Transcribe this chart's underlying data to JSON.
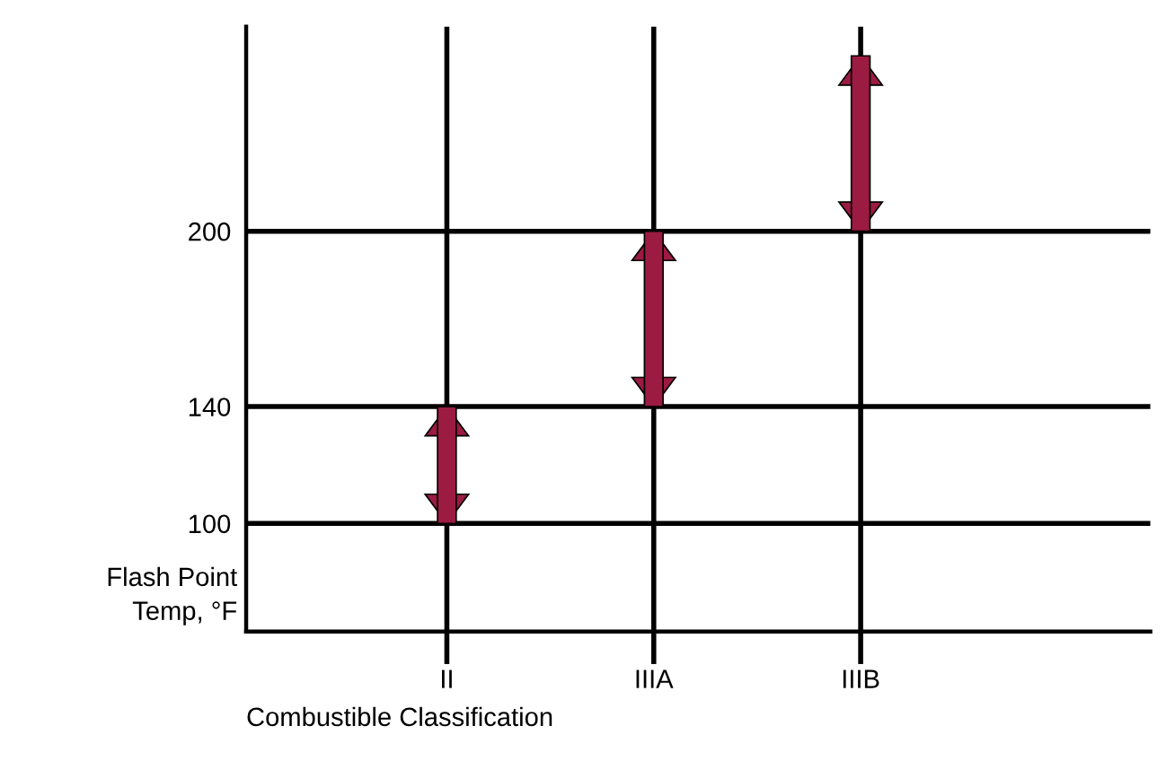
{
  "chart_data": {
    "type": "bar",
    "xlabel": "Combustible Classification",
    "ylabel": "Flash Point\nTemp, °F",
    "categories": [
      "II",
      "IIIA",
      "IIIB"
    ],
    "base": [
      100,
      140,
      200
    ],
    "values": [
      40,
      60,
      60
    ],
    "color": "#9b1b42",
    "ylim": [
      63,
      270
    ],
    "yticks": [
      100,
      140,
      200
    ],
    "grid": true
  }
}
